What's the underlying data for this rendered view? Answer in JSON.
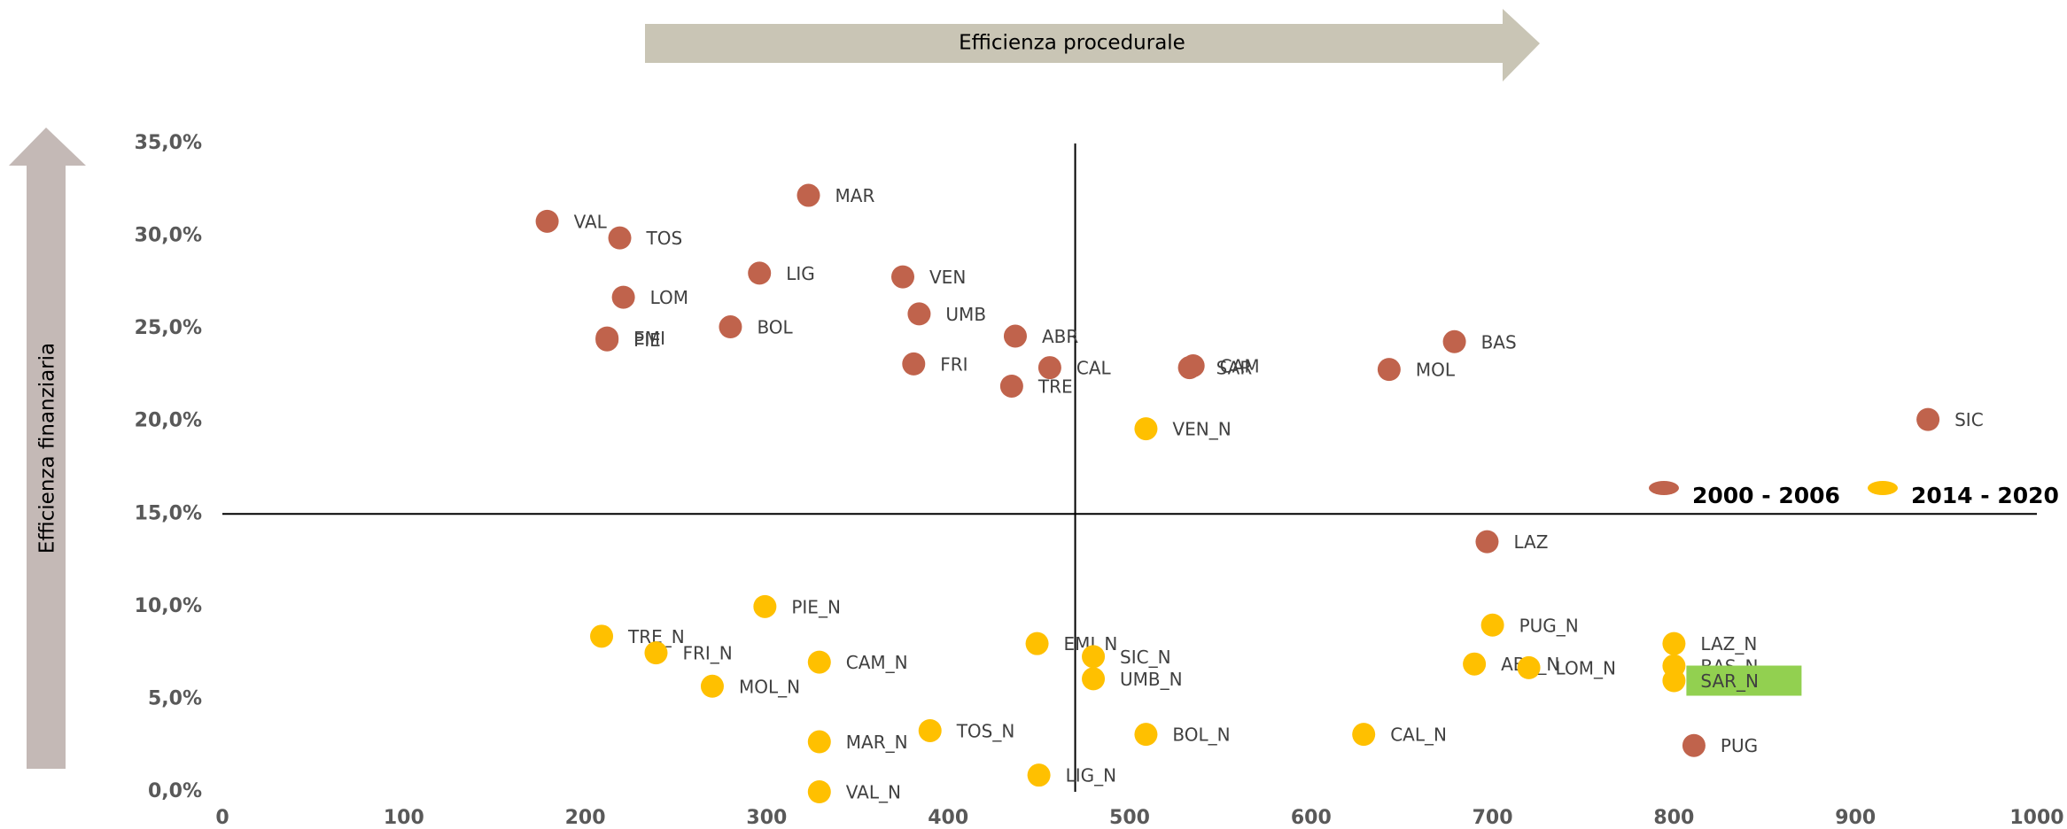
{
  "chart_data": {
    "type": "scatter",
    "xlabel": "Efficienza procedurale",
    "ylabel": "Efficienza finanziaria",
    "xlim": [
      0,
      1000
    ],
    "xticks": [
      0,
      100,
      200,
      300,
      400,
      500,
      600,
      700,
      800,
      900,
      1000
    ],
    "ylim": [
      0,
      35
    ],
    "yticks": [
      {
        "value": 0,
        "label": "0,0%"
      },
      {
        "value": 5,
        "label": "5,0%"
      },
      {
        "value": 10,
        "label": "10,0%"
      },
      {
        "value": 15,
        "label": "15,0%"
      },
      {
        "value": 20,
        "label": "20,0%"
      },
      {
        "value": 25,
        "label": "25,0%"
      },
      {
        "value": 30,
        "label": "30,0%"
      },
      {
        "value": 35,
        "label": "35,0%"
      }
    ],
    "reference_x": 470,
    "reference_y": 15,
    "series": [
      {
        "name": "2000 - 2006",
        "color": "#c0634c",
        "labels": [
          "VAL",
          "TOS",
          "MAR",
          "LIG",
          "VEN",
          "LOM",
          "UMB",
          "BOL",
          "EMI",
          "PIE",
          "ABR",
          "BAS",
          "FRI",
          "CAL",
          "CAM",
          "SAR",
          "MOL",
          "TRE",
          "SIC",
          "LAZ",
          "PUG"
        ],
        "x": [
          179,
          219,
          323,
          296,
          375,
          221,
          384,
          280,
          212,
          212,
          437,
          679,
          381,
          456,
          535,
          533,
          643,
          435,
          940,
          697,
          811
        ],
        "values": [
          30.8,
          29.9,
          32.2,
          28.0,
          27.8,
          26.7,
          25.8,
          25.1,
          24.5,
          24.4,
          24.6,
          24.3,
          23.1,
          22.9,
          23.0,
          22.9,
          22.8,
          21.9,
          20.1,
          13.5,
          2.5
        ]
      },
      {
        "name": "2014 - 2020",
        "color": "#ffc000",
        "labels": [
          "VEN_N",
          "PIE_N",
          "TRE_N",
          "FRI_N",
          "EMI_N",
          "SIC_N",
          "CAM_N",
          "UMB_N",
          "MOL_N",
          "PUG_N",
          "ABR_N",
          "LOM_N",
          "LAZ_N",
          "BAS_N",
          "SAR_N",
          "TOS_N",
          "MAR_N",
          "BOL_N",
          "CAL_N",
          "VAL_N",
          "LIG_N"
        ],
        "x": [
          509,
          299,
          209,
          239,
          449,
          480,
          329,
          480,
          270,
          700,
          690,
          720,
          800,
          800,
          800,
          390,
          329,
          509,
          629,
          329,
          450
        ],
        "values": [
          19.6,
          10.0,
          8.4,
          7.5,
          8.0,
          7.3,
          7.0,
          6.1,
          5.7,
          9.0,
          6.9,
          6.7,
          8.0,
          6.8,
          6.0,
          3.3,
          2.7,
          3.1,
          3.1,
          0.0,
          0.9
        ]
      }
    ],
    "highlight": {
      "series": 1,
      "point": 14,
      "color": "#92d050"
    }
  }
}
